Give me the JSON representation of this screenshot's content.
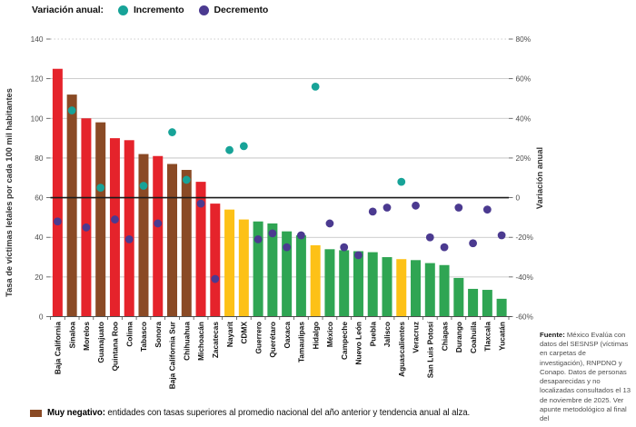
{
  "legend_top": {
    "title": "Variación anual:",
    "items": [
      {
        "label": "Incremento",
        "color": "#17a398"
      },
      {
        "label": "Decremento",
        "color": "#4b3a90"
      }
    ]
  },
  "chart_data": {
    "type": "bar",
    "title": "",
    "ylabel_left": "Tasa de víctimas letales por cada 100 mil habitantes",
    "ylabel_right": "Variación anual",
    "ylim_left": [
      0,
      140
    ],
    "ylim_right": [
      -60,
      80
    ],
    "yticks_left": [
      0,
      20,
      40,
      60,
      80,
      100,
      120,
      140
    ],
    "yticks_right": [
      {
        "value": 80,
        "label": "80%"
      },
      {
        "value": 60,
        "label": "60%"
      },
      {
        "value": 40,
        "label": "40%"
      },
      {
        "value": 20,
        "label": "20%"
      },
      {
        "value": 0,
        "label": "0"
      },
      {
        "value": -20,
        "label": "-20%"
      },
      {
        "value": -40,
        "label": "-40%"
      },
      {
        "value": -60,
        "label": "-60%"
      }
    ],
    "zero_line_right": 0,
    "grid": true,
    "legend_position": "top-left",
    "categories": [
      "Baja California",
      "Sinaloa",
      "Morelos",
      "Guanajuato",
      "Quintana Roo",
      "Colima",
      "Tabasco",
      "Sonora",
      "Baja California Sur",
      "Chihuahua",
      "Michoacán",
      "Zacatecas",
      "Nayarit",
      "CDMX",
      "Guerrero",
      "Querétaro",
      "Oaxaca",
      "Tamaulipas",
      "Hidalgo",
      "México",
      "Campeche",
      "Nuevo León",
      "Puebla",
      "Jalisco",
      "Aguascalientes",
      "Veracruz",
      "San Luis Potosí",
      "Chiapas",
      "Durango",
      "Coahuila",
      "Tlaxcala",
      "Yucatán"
    ],
    "series": [
      {
        "name": "Tasa de víctimas letales por cada 100 mil habitantes",
        "type": "bar",
        "values": [
          125,
          112,
          100,
          98,
          90,
          89,
          82,
          81,
          77,
          74,
          68,
          57,
          54,
          49,
          48,
          47,
          43,
          41,
          36,
          34,
          33.5,
          33,
          32.5,
          30,
          29,
          28.5,
          27,
          26,
          19.5,
          14,
          13.5,
          9
        ],
        "bar_colors": [
          "red",
          "brown",
          "red",
          "brown",
          "red",
          "red",
          "brown",
          "red",
          "brown",
          "brown",
          "red",
          "red",
          "yellow",
          "yellow",
          "green",
          "green",
          "green",
          "green",
          "yellow",
          "green",
          "green",
          "green",
          "green",
          "green",
          "yellow",
          "green",
          "green",
          "green",
          "green",
          "green",
          "green",
          "green"
        ]
      },
      {
        "name": "Variación anual",
        "type": "scatter",
        "values": [
          -12,
          44,
          -15,
          5,
          -11,
          -21,
          6,
          -13,
          33,
          9,
          -3,
          -41,
          24,
          26,
          -21,
          -18,
          -25,
          -19,
          56,
          -13,
          -25,
          -29,
          -7,
          -5,
          8,
          -4,
          -20,
          -25,
          -5,
          -23,
          -6,
          -19
        ],
        "positive_color": "#17a398",
        "negative_color": "#4b3a90"
      }
    ],
    "palette": {
      "red": "#e5232b",
      "brown": "#8a4a25",
      "yellow": "#fdc117",
      "green": "#2fa553"
    }
  },
  "bottom_legend": {
    "swatch_color": "#8a4a25",
    "label": "Muy negativo:",
    "text": "entidades con tasas superiores al promedio nacional del año anterior y tendencia anual al alza."
  },
  "footer": {
    "label": "Fuente:",
    "text": "México Evalúa con datos del SESNSP (víctimas en carpetas de investigación), RNPDNO y Conapo. Datos de personas desaparecidas y no localizadas consultados el 13 de noviembre de 2025. Ver apunte metodológico al final del"
  }
}
